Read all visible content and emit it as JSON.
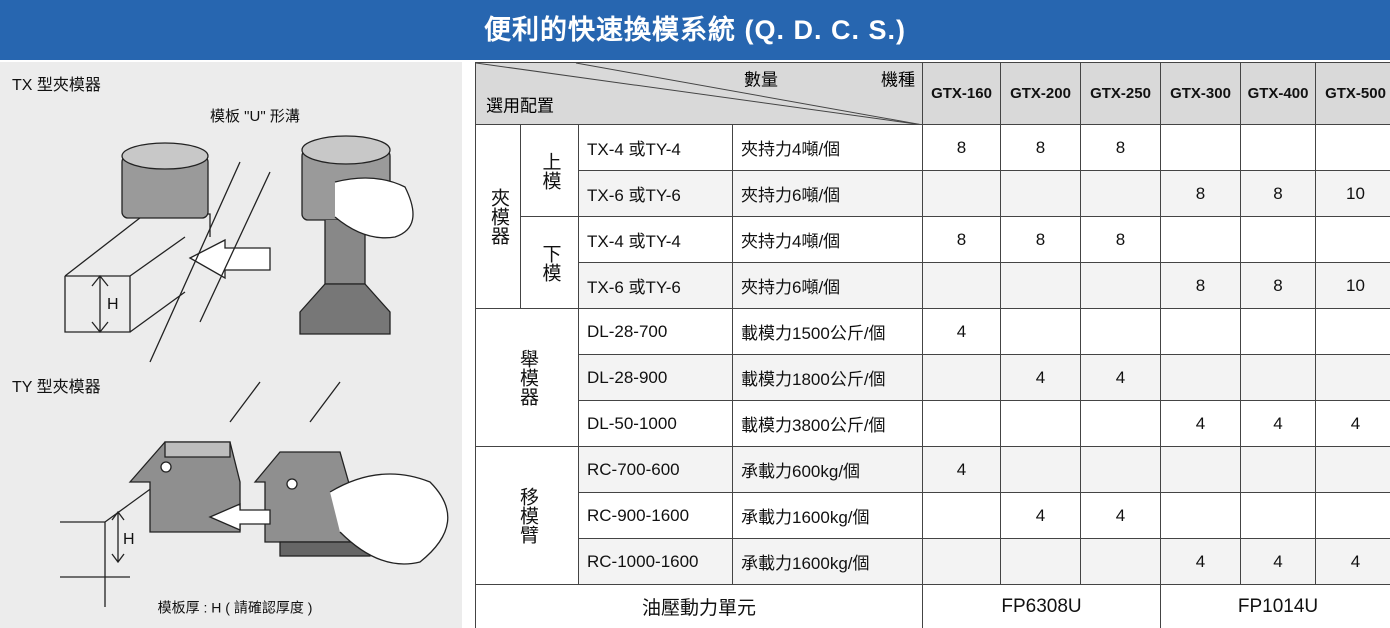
{
  "title": "便利的快速換模系統 (Q. D. C. S.)",
  "illustrations": {
    "tx_label": "TX 型夾模器",
    "u_groove": "模板 \"U\" 形溝",
    "tx_h": "H",
    "ty_label": "TY 型夾模器",
    "ty_h": "H",
    "caption": "模板厚 : H ( 請確認厚度 )"
  },
  "table": {
    "header": {
      "config": "選用配置",
      "quantity": "數量",
      "model": "機種",
      "models": [
        "GTX-160",
        "GTX-200",
        "GTX-250",
        "GTX-300",
        "GTX-400",
        "GTX-500"
      ]
    },
    "groups": [
      {
        "label": "夾模器",
        "subgroups": [
          {
            "label": "上模",
            "rows": [
              {
                "model": "TX-4 或TY-4",
                "spec": "夾持力4噸/個",
                "quantities": [
                  8,
                  8,
                  8,
                  null,
                  null,
                  null
                ]
              },
              {
                "model": "TX-6 或TY-6",
                "spec": "夾持力6噸/個",
                "quantities": [
                  null,
                  null,
                  null,
                  8,
                  8,
                  10
                ]
              }
            ]
          },
          {
            "label": "下模",
            "rows": [
              {
                "model": "TX-4 或TY-4",
                "spec": "夾持力4噸/個",
                "quantities": [
                  8,
                  8,
                  8,
                  null,
                  null,
                  null
                ]
              },
              {
                "model": "TX-6 或TY-6",
                "spec": "夾持力6噸/個",
                "quantities": [
                  null,
                  null,
                  null,
                  8,
                  8,
                  10
                ]
              }
            ]
          }
        ]
      },
      {
        "label": "舉模器",
        "rows": [
          {
            "model": "DL-28-700",
            "spec": "載模力1500公斤/個",
            "quantities": [
              4,
              null,
              null,
              null,
              null,
              null
            ]
          },
          {
            "model": "DL-28-900",
            "spec": "載模力1800公斤/個",
            "quantities": [
              null,
              4,
              4,
              null,
              null,
              null
            ]
          },
          {
            "model": "DL-50-1000",
            "spec": "載模力3800公斤/個",
            "quantities": [
              null,
              null,
              null,
              4,
              4,
              4
            ]
          }
        ]
      },
      {
        "label": "移模臂",
        "rows": [
          {
            "model": "RC-700-600",
            "spec": "承載力600kg/個",
            "quantities": [
              4,
              null,
              null,
              null,
              null,
              null
            ]
          },
          {
            "model": "RC-900-1600",
            "spec": "承載力1600kg/個",
            "quantities": [
              null,
              4,
              4,
              null,
              null,
              null
            ]
          },
          {
            "model": "RC-1000-1600",
            "spec": "承載力1600kg/個",
            "quantities": [
              null,
              null,
              null,
              4,
              4,
              4
            ]
          }
        ]
      }
    ],
    "footer": {
      "label": "油壓動力單元",
      "units": [
        "FP6308U",
        "FP1014U"
      ]
    }
  }
}
